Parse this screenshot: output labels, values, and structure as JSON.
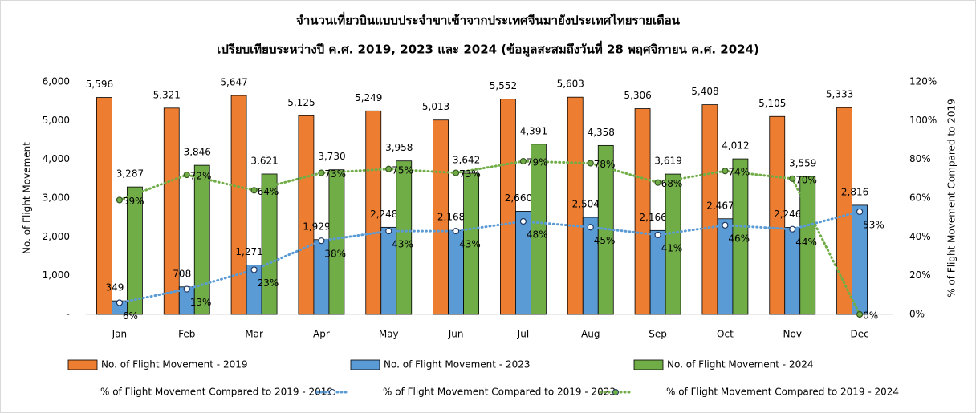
{
  "chart_data": {
    "type": "bar",
    "title": "จำนวนเที่ยวบินแบบประจำขาเข้าจากประเทศจีนมายังประเทศไทยรายเดือน",
    "subtitle": "เปรียบเทียบระหว่างปี ค.ศ. 2019, 2023 และ 2024 (ข้อมูลสะสมถึงวันที่ 28 พฤศจิกายน ค.ศ. 2024)",
    "y_label": "No. of Flight Movement",
    "y2_label": "% of Flight Movement Compared to 2019",
    "categories": [
      "Jan",
      "Feb",
      "Mar",
      "Apr",
      "May",
      "Jun",
      "Jul",
      "Aug",
      "Sep",
      "Oct",
      "Nov",
      "Dec"
    ],
    "ylim": [
      0,
      6000
    ],
    "yticks": [
      {
        "value": 0,
        "label": "-"
      },
      {
        "value": 1000,
        "label": "1,000"
      },
      {
        "value": 2000,
        "label": "2,000"
      },
      {
        "value": 3000,
        "label": "3,000"
      },
      {
        "value": 4000,
        "label": "4,000"
      },
      {
        "value": 5000,
        "label": "5,000"
      },
      {
        "value": 6000,
        "label": "6,000"
      }
    ],
    "y2lim": [
      0,
      120
    ],
    "y2ticks": [
      {
        "value": 0,
        "label": "0%"
      },
      {
        "value": 20,
        "label": "20%"
      },
      {
        "value": 40,
        "label": "40%"
      },
      {
        "value": 60,
        "label": "60%"
      },
      {
        "value": 80,
        "label": "80%"
      },
      {
        "value": 100,
        "label": "100%"
      },
      {
        "value": 120,
        "label": "120%"
      }
    ],
    "legend": "bottom",
    "series": [
      {
        "name": "No. of Flight Movement - 2019",
        "type": "bar",
        "color": "#ed7d31",
        "values": [
          5596,
          5321,
          5647,
          5125,
          5249,
          5013,
          5552,
          5603,
          5306,
          5408,
          5105,
          5333
        ],
        "value_labels": [
          "5,596",
          "5,321",
          "5,647",
          "5,125",
          "5,249",
          "5,013",
          "5,552",
          "5,603",
          "5,306",
          "5,408",
          "5,105",
          "5,333"
        ]
      },
      {
        "name": "No. of Flight Movement - 2023",
        "type": "bar",
        "color": "#5b9bd5",
        "values": [
          349,
          708,
          1271,
          1929,
          2248,
          2168,
          2660,
          2504,
          2166,
          2467,
          2246,
          2816
        ],
        "value_labels": [
          "349",
          "708",
          "1,271",
          "1,929",
          "2,248",
          "2,168",
          "2,660",
          "2,504",
          "2,166",
          "2,467",
          "2,246",
          "2,816"
        ]
      },
      {
        "name": "No. of Flight Movement - 2024",
        "type": "bar",
        "color": "#70ad47",
        "values": [
          3287,
          3846,
          3621,
          3730,
          3958,
          3642,
          4391,
          4358,
          3619,
          4012,
          3559,
          null
        ],
        "value_labels": [
          "3,287",
          "3,846",
          "3,621",
          "3,730",
          "3,958",
          "3,642",
          "4,391",
          "4,358",
          "3,619",
          "4,012",
          "3,559",
          null
        ]
      },
      {
        "name": "% of Flight Movement Compared to 2019 - 2019",
        "type": "line",
        "axis": "y2",
        "color": "#ed7d31",
        "values": [
          null,
          null,
          null,
          null,
          null,
          null,
          null,
          null,
          null,
          null,
          null,
          null
        ]
      },
      {
        "name": "% of Flight Movement Compared to 2019 - 2023",
        "type": "line",
        "axis": "y2",
        "color": "#5b9bd5",
        "values": [
          6,
          13,
          23,
          38,
          43,
          43,
          48,
          45,
          41,
          46,
          44,
          53
        ],
        "value_labels": [
          "6%",
          "13%",
          "23%",
          "38%",
          "43%",
          "43%",
          "48%",
          "45%",
          "41%",
          "46%",
          "44%",
          "53%"
        ]
      },
      {
        "name": "% of Flight Movement Compared to 2019 - 2024",
        "type": "line",
        "axis": "y2",
        "color": "#70ad47",
        "values": [
          59,
          72,
          64,
          73,
          75,
          73,
          79,
          78,
          68,
          74,
          70,
          0
        ],
        "value_labels": [
          "59%",
          "72%",
          "64%",
          "73%",
          "75%",
          "73%",
          "79%",
          "78%",
          "68%",
          "74%",
          "70%",
          "0%"
        ]
      }
    ]
  }
}
